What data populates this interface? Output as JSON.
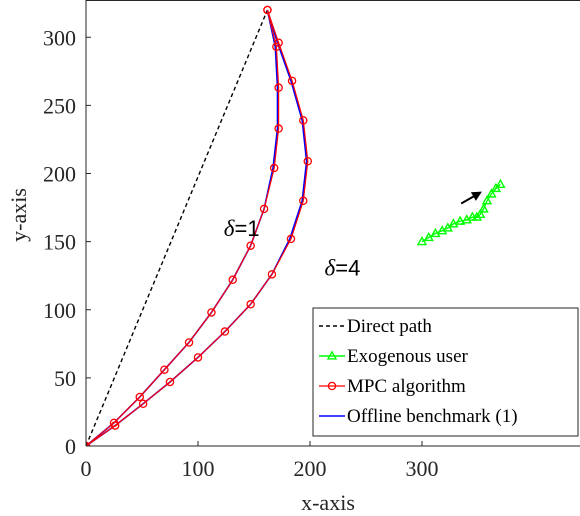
{
  "chart_data": {
    "type": "line",
    "xlabel": "x-axis",
    "ylabel": "y-axis",
    "xlim": [
      0,
      350
    ],
    "ylim": [
      0,
      320
    ],
    "xticks": [
      0,
      100,
      200,
      300
    ],
    "yticks": [
      0,
      50,
      100,
      150,
      200,
      250,
      300
    ],
    "grid": false,
    "legend_position": "bottom-right",
    "annotations": [
      {
        "symbol": "δ",
        "text": "=1",
        "x": 123,
        "y": 160
      },
      {
        "symbol": "δ",
        "text": "=4",
        "x": 213,
        "y": 131
      }
    ],
    "colors": {
      "direct": "#000000",
      "exogenous": "#00ff00",
      "mpc": "#ff0000",
      "offline": "#0000ff"
    },
    "series": [
      {
        "name": "Direct path",
        "style": "dashed",
        "x": [
          0,
          162
        ],
        "y": [
          0,
          320
        ]
      },
      {
        "name": "Exogenous user",
        "marker": "triangle",
        "x": [
          300,
          306,
          312,
          318,
          323,
          328,
          334,
          340,
          345,
          349,
          352,
          355,
          358,
          362,
          366,
          370
        ],
        "y": [
          150,
          153,
          156,
          158,
          160,
          163,
          165,
          166,
          168,
          168,
          170,
          174,
          180,
          185,
          189,
          192
        ]
      },
      {
        "name": "MPC algorithm",
        "marker": "circle",
        "paths": [
          {
            "label": "δ=1",
            "x": [
              0,
              25,
              48,
              70,
              92,
              112,
              131,
              147,
              159,
              168,
              172,
              172,
              170,
              162
            ],
            "y": [
              0,
              17,
              36,
              56,
              76,
              98,
              122,
              147,
              174,
              204,
              233,
              263,
              293,
              320
            ]
          },
          {
            "label": "δ=4",
            "x": [
              0,
              26,
              51,
              75,
              100,
              124,
              147,
              166,
              183,
              194,
              198,
              194,
              184,
              172,
              162
            ],
            "y": [
              0,
              15,
              31,
              47,
              65,
              84,
              104,
              126,
              152,
              180,
              209,
              239,
              268,
              296,
              320
            ]
          }
        ]
      },
      {
        "name": "Offline benchmark (1)",
        "paths": [
          {
            "label": "δ=1",
            "x": [
              0,
              25,
              48,
              70,
              92,
              112,
              131,
              147,
              159,
              167,
              171,
              171,
              169,
              162
            ],
            "y": [
              0,
              17,
              36,
              56,
              76,
              98,
              122,
              147,
              174,
              204,
              233,
              263,
              293,
              320
            ]
          },
          {
            "label": "δ=4",
            "x": [
              0,
              26,
              51,
              75,
              100,
              124,
              147,
              166,
              182,
              193,
              197,
              193,
              183,
              171,
              162
            ],
            "y": [
              0,
              15,
              31,
              47,
              65,
              84,
              104,
              126,
              152,
              180,
              209,
              239,
              268,
              296,
              320
            ]
          }
        ]
      }
    ],
    "arrow": {
      "from": [
        335,
        178
      ],
      "to": [
        352,
        186
      ]
    }
  }
}
